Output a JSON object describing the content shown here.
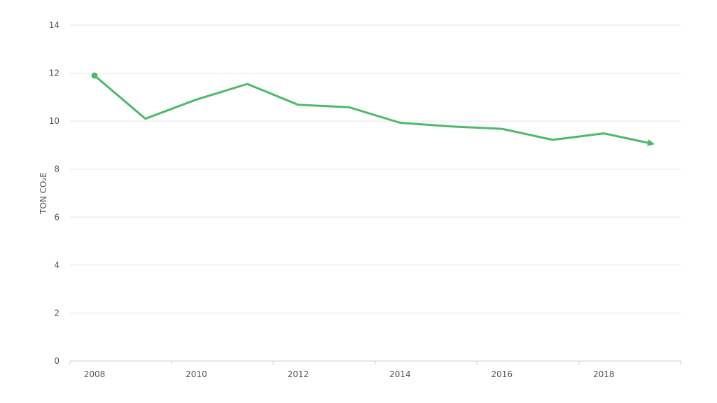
{
  "chart_data": {
    "type": "line",
    "x": [
      2008,
      2009,
      2010,
      2011,
      2012,
      2013,
      2014,
      2015,
      2016,
      2017,
      2018,
      2019
    ],
    "series": [
      {
        "values": [
          11.9,
          10.1,
          10.9,
          11.55,
          10.68,
          10.58,
          9.93,
          9.78,
          9.68,
          9.22,
          9.49,
          9.04
        ],
        "color": "#4cba6a"
      }
    ],
    "ylabel": "TON CO₂E",
    "ylim": [
      0,
      14
    ],
    "y_ticks": [
      0,
      2,
      4,
      6,
      8,
      10,
      12,
      14
    ],
    "x_tick_labels": [
      "2008",
      "2010",
      "2012",
      "2014",
      "2016",
      "2018"
    ],
    "xlim": [
      2008,
      2019
    ],
    "grid": true,
    "start_marker": "circle",
    "end_marker": "arrow"
  }
}
